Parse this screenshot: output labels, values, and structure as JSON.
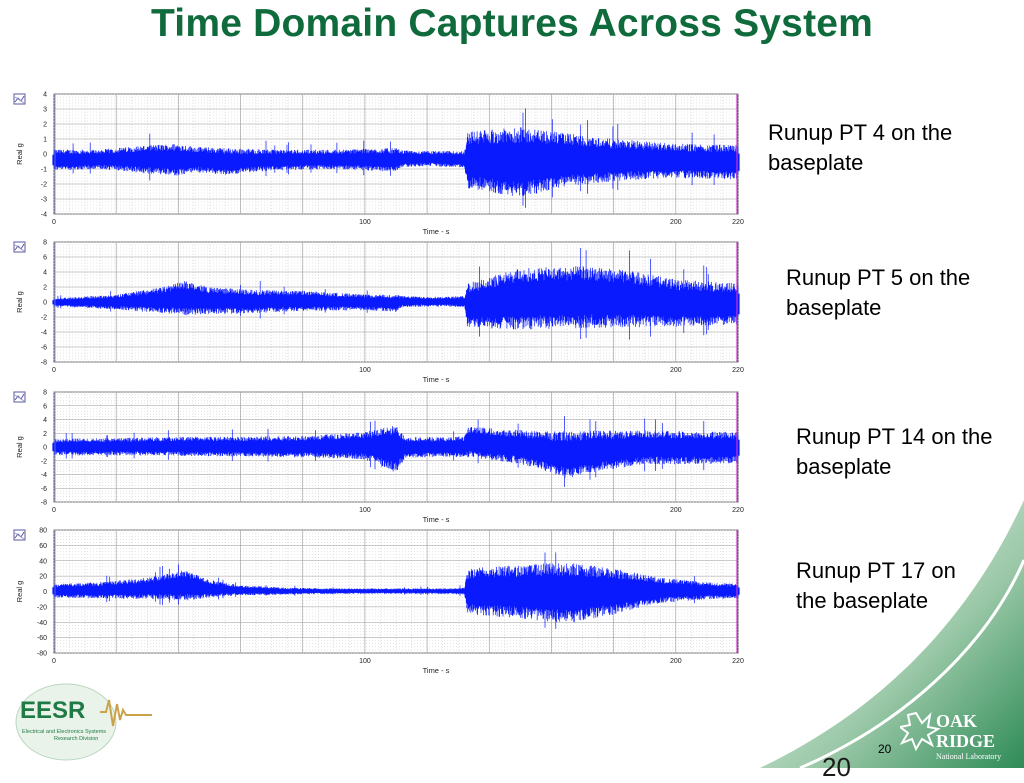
{
  "title": "Time Domain Captures Across System",
  "slide_number": "20",
  "footer_number": "20",
  "colors": {
    "title": "#0f6a3c",
    "trace": "#0a1aff",
    "accent_green": "#2e8b57"
  },
  "logos": {
    "eesr": {
      "name": "EESR",
      "line1": "Electrical and Electronics Systems",
      "line2": "Research Division"
    },
    "ornl": {
      "line1": "OAK",
      "line2": "RIDGE",
      "line3": "National Laboratory"
    }
  },
  "chart_data": [
    {
      "type": "line",
      "caption": "Runup PT 4 on the baseplate",
      "xlabel": "Time - s",
      "ylabel": "Real g",
      "xlim": [
        0,
        220
      ],
      "ylim": [
        -4,
        4
      ],
      "x_ticks": [
        0,
        100,
        200,
        220
      ],
      "y_ticks": [
        4,
        3,
        2,
        1,
        0,
        -1,
        -2,
        -3,
        -4
      ],
      "grid": true,
      "envelope": {
        "x": [
          0,
          15,
          30,
          40,
          45,
          55,
          70,
          90,
          110,
          112,
          120,
          132,
          133,
          150,
          165,
          180,
          200,
          220
        ],
        "upper": [
          0.3,
          0.3,
          0.6,
          0.7,
          0.5,
          0.4,
          0.3,
          0.3,
          0.4,
          0.25,
          0.2,
          0.2,
          1.5,
          1.8,
          1.4,
          1.0,
          0.7,
          0.6
        ],
        "lower": [
          -1.1,
          -1.0,
          -1.3,
          -1.5,
          -1.2,
          -1.4,
          -1.1,
          -1.0,
          -1.2,
          -0.9,
          -0.8,
          -0.9,
          -2.3,
          -2.9,
          -2.2,
          -1.8,
          -1.6,
          -1.7
        ]
      }
    },
    {
      "type": "line",
      "caption": "Runup PT 5 on the baseplate",
      "xlabel": "Time - s",
      "ylabel": "Real g",
      "xlim": [
        0,
        220
      ],
      "ylim": [
        -8,
        8
      ],
      "x_ticks": [
        0,
        100,
        200,
        220
      ],
      "y_ticks": [
        8,
        6,
        4,
        2,
        0,
        -2,
        -4,
        -6,
        -8
      ],
      "grid": true,
      "envelope": {
        "x": [
          0,
          20,
          35,
          42,
          50,
          65,
          80,
          100,
          110,
          112,
          125,
          132,
          133,
          150,
          170,
          185,
          200,
          220
        ],
        "upper": [
          0.5,
          1.0,
          2.0,
          2.8,
          2.0,
          1.6,
          1.5,
          1.0,
          1.0,
          0.8,
          0.7,
          0.8,
          2.5,
          4.5,
          4.8,
          4.2,
          3.0,
          2.5
        ],
        "lower": [
          -0.6,
          -1.0,
          -1.5,
          -1.8,
          -1.6,
          -1.5,
          -1.2,
          -1.1,
          -1.3,
          -0.7,
          -0.6,
          -0.7,
          -3.5,
          -3.7,
          -3.5,
          -3.4,
          -3.3,
          -3.0
        ]
      }
    },
    {
      "type": "line",
      "caption": "Runup PT 14 on the baseplate",
      "xlabel": "Time - s",
      "ylabel": "Real g",
      "xlim": [
        0,
        220
      ],
      "ylim": [
        -8,
        8
      ],
      "x_ticks": [
        0,
        100,
        200,
        220
      ],
      "y_ticks": [
        8,
        6,
        4,
        2,
        0,
        -2,
        -4,
        -6,
        -8
      ],
      "grid": true,
      "envelope": {
        "x": [
          0,
          20,
          40,
          60,
          80,
          100,
          110,
          113,
          125,
          132,
          133,
          150,
          160,
          165,
          175,
          190,
          200,
          220
        ],
        "upper": [
          1.2,
          1.3,
          1.5,
          1.5,
          1.6,
          2.2,
          3.2,
          1.5,
          1.4,
          1.6,
          3.0,
          2.5,
          2.3,
          2.3,
          2.4,
          2.4,
          2.3,
          2.2
        ],
        "lower": [
          -1.2,
          -1.2,
          -1.3,
          -1.4,
          -1.5,
          -1.8,
          -3.8,
          -1.6,
          -1.4,
          -1.5,
          -1.5,
          -2.5,
          -3.8,
          -4.6,
          -3.5,
          -2.5,
          -2.5,
          -2.4
        ]
      }
    },
    {
      "type": "line",
      "caption": "Runup PT 17 on the baseplate",
      "xlabel": "Time - s",
      "ylabel": "Real g",
      "xlim": [
        0,
        220
      ],
      "ylim": [
        -80,
        80
      ],
      "x_ticks": [
        0,
        100,
        200,
        220
      ],
      "y_ticks": [
        80,
        60,
        40,
        20,
        0,
        -20,
        -40,
        -60,
        -80
      ],
      "grid": true,
      "envelope": {
        "x": [
          0,
          15,
          30,
          42,
          50,
          60,
          75,
          90,
          110,
          125,
          132,
          133,
          150,
          165,
          180,
          195,
          210,
          220
        ],
        "upper": [
          10,
          12,
          18,
          28,
          15,
          8,
          5,
          4,
          4,
          4,
          5,
          30,
          35,
          38,
          30,
          18,
          12,
          10
        ],
        "lower": [
          -8,
          -9,
          -10,
          -12,
          -8,
          -5,
          -4,
          -3,
          -3,
          -3,
          -4,
          -30,
          -35,
          -42,
          -30,
          -15,
          -10,
          -9
        ]
      }
    }
  ]
}
